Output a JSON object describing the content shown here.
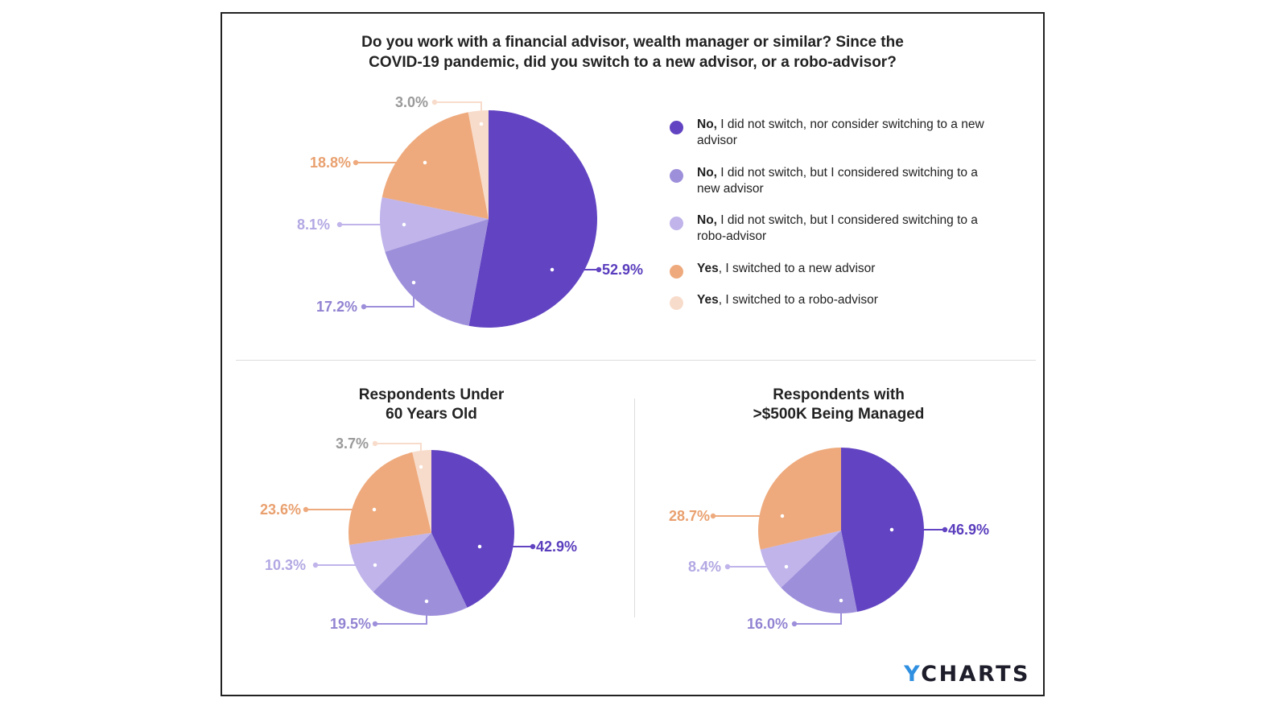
{
  "colors": {
    "no_not_consider": "#6244c2",
    "no_consider_new": "#9e8fdb",
    "no_consider_robo": "#c0b4ea",
    "yes_new": "#eeaa7d",
    "yes_robo": "#f8dccb"
  },
  "legend": [
    {
      "bold": "No,",
      "text": " I did not switch, nor consider switching to a new advisor",
      "color_key": "no_not_consider"
    },
    {
      "bold": "No,",
      "text": " I did not switch, but I considered switching to a new advisor",
      "color_key": "no_consider_new"
    },
    {
      "bold": "No,",
      "text": " I did not switch, but I considered switching to a robo-advisor",
      "color_key": "no_consider_robo"
    },
    {
      "bold": "Yes",
      "text": ", I switched to a new advisor",
      "color_key": "yes_new"
    },
    {
      "bold": "Yes",
      "text": ", I switched to a robo-advisor",
      "color_key": "yes_robo"
    }
  ],
  "chart_data": [
    {
      "type": "pie",
      "title": "Do you work with a financial advisor, wealth manager or similar? Since the COVID-19 pandemic, did you switch to a new advisor, or a robo-advisor?",
      "title_lines": [
        "Do you work with a financial advisor, wealth manager or similar? Since the",
        "COVID-19 pandemic, did you switch to a new advisor, or a robo-advisor?"
      ],
      "slices": [
        {
          "color_key": "no_not_consider",
          "value": 52.9,
          "label": "52.9%"
        },
        {
          "color_key": "no_consider_new",
          "value": 17.2,
          "label": "17.2%"
        },
        {
          "color_key": "no_consider_robo",
          "value": 8.1,
          "label": "8.1%"
        },
        {
          "color_key": "yes_new",
          "value": 18.8,
          "label": "18.8%"
        },
        {
          "color_key": "yes_robo",
          "value": 3.0,
          "label": "3.0%"
        }
      ]
    },
    {
      "type": "pie",
      "title": "Respondents Under 60 Years Old",
      "title_lines": [
        "Respondents Under",
        "60 Years Old"
      ],
      "slices": [
        {
          "color_key": "no_not_consider",
          "value": 42.9,
          "label": "42.9%"
        },
        {
          "color_key": "no_consider_new",
          "value": 19.5,
          "label": "19.5%"
        },
        {
          "color_key": "no_consider_robo",
          "value": 10.3,
          "label": "10.3%"
        },
        {
          "color_key": "yes_new",
          "value": 23.6,
          "label": "23.6%"
        },
        {
          "color_key": "yes_robo",
          "value": 3.7,
          "label": "3.7%"
        }
      ]
    },
    {
      "type": "pie",
      "title": "Respondents with >$500K Being Managed",
      "title_lines": [
        "Respondents with",
        ">$500K Being Managed"
      ],
      "slices": [
        {
          "color_key": "no_not_consider",
          "value": 46.9,
          "label": "46.9%"
        },
        {
          "color_key": "no_consider_new",
          "value": 16.0,
          "label": "16.0%"
        },
        {
          "color_key": "no_consider_robo",
          "value": 8.4,
          "label": "8.4%"
        },
        {
          "color_key": "yes_new",
          "value": 28.7,
          "label": "28.7%"
        }
      ]
    }
  ],
  "logo": {
    "first": "Y",
    "rest": "CHARTS"
  }
}
